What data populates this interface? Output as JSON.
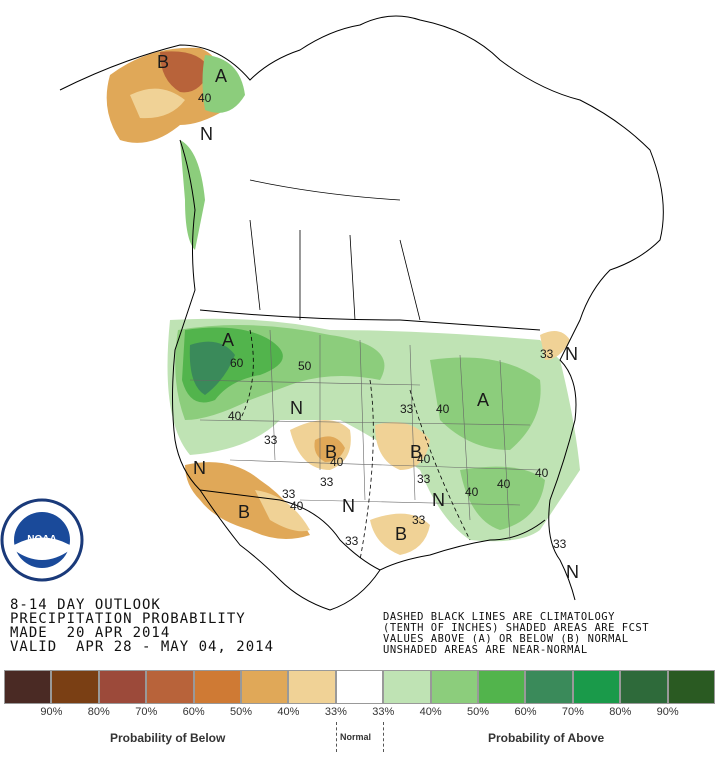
{
  "header": {
    "line1": "8-14 DAY OUTLOOK",
    "line2": "PRECIPITATION PROBABILITY",
    "line3": "MADE  20 APR 2014",
    "line4": "VALID  APR 28 - MAY 04, 2014"
  },
  "notes": {
    "line1": "DASHED BLACK LINES ARE CLIMATOLOGY",
    "line2": "(TENTH OF INCHES) SHADED AREAS ARE FCST",
    "line3": "VALUES ABOVE (A) OR BELOW (B) NORMAL",
    "line4": "UNSHADED AREAS ARE NEAR-NORMAL"
  },
  "legend": {
    "colors": [
      "#4a2a24",
      "#7a3f14",
      "#9c4a3a",
      "#b8633a",
      "#cf7a34",
      "#e0a858",
      "#f0d296",
      "#ffffff",
      "#bfe3b4",
      "#8ccd7c",
      "#52b44c",
      "#3a8a5a",
      "#1a9a4a",
      "#2e6a3a",
      "#2a5a22"
    ],
    "ticks": [
      "90%",
      "80%",
      "70%",
      "60%",
      "50%",
      "40%",
      "33%",
      "33%",
      "40%",
      "50%",
      "60%",
      "70%",
      "80%",
      "90%"
    ],
    "below_caption": "Probability of Below",
    "normal_caption": "Normal",
    "above_caption": "Probability of Above"
  },
  "map_labels": {
    "letters": [
      "B",
      "A",
      "N",
      "A",
      "N",
      "B",
      "B",
      "B",
      "N",
      "B",
      "N",
      "A",
      "N",
      "N",
      "B"
    ],
    "numbers": [
      "40",
      "33",
      "60",
      "50",
      "40",
      "33",
      "40",
      "33",
      "40",
      "33",
      "33",
      "40",
      "33",
      "33",
      "33",
      "40",
      "40",
      "40",
      "33",
      "40",
      "33"
    ]
  },
  "logo": {
    "text": "NOAA",
    "ring_text": "U.S. DEPARTMENT OF COMMERCE"
  }
}
